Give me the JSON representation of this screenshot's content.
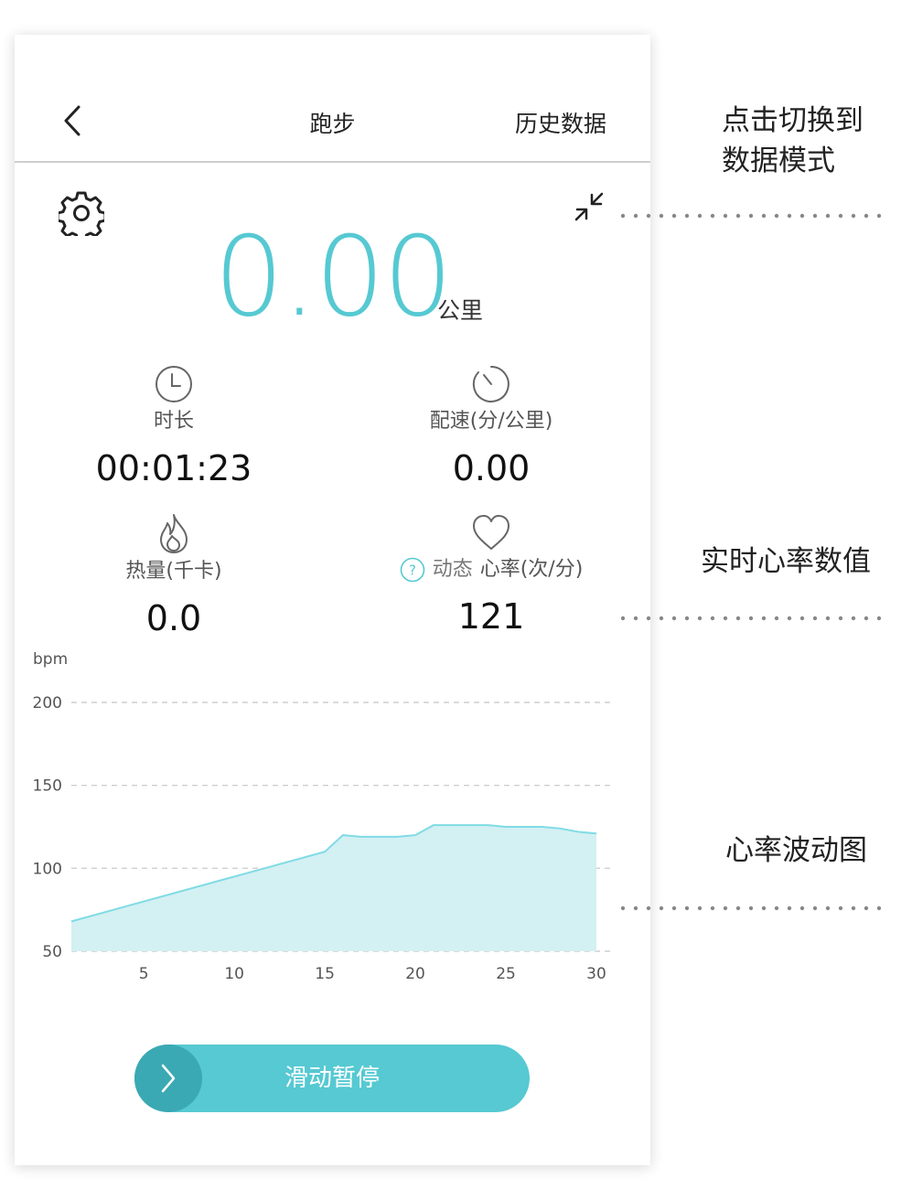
{
  "header": {
    "title": "跑步",
    "history_label": "历史数据"
  },
  "distance": {
    "value": "0.00",
    "unit": "公里"
  },
  "stats": {
    "duration": {
      "label": "时长",
      "value": "00:01:23"
    },
    "pace": {
      "label": "配速(分/公里)",
      "value": "0.00"
    },
    "calories": {
      "label": "热量(千卡)",
      "value": "0.0"
    },
    "heart_rate": {
      "prefix": "动态",
      "label": "心率(次/分)",
      "value": "121"
    }
  },
  "pause_slider": {
    "label": "滑动暂停"
  },
  "annotations": {
    "mode_switch": "点击切换到\n数据模式",
    "realtime_hr": "实时心率数值",
    "hr_chart": "心率波动图"
  },
  "colors": {
    "accent": "#56c9d2",
    "accent_dark": "#3aa9b3",
    "chart_fill": "#d3f0f3",
    "chart_line": "#7fdbe4"
  },
  "icons": {
    "back": "chevron-left-icon",
    "settings": "gear-icon",
    "collapse": "collapse-arrows-icon",
    "duration": "clock-icon",
    "pace": "stopwatch-icon",
    "calories": "flame-icon",
    "heart_rate": "heart-icon",
    "help": "question-circle-icon",
    "slider": "chevron-right-icon"
  },
  "chart_data": {
    "type": "area",
    "ylabel": "bpm",
    "xlabel": "",
    "ylim": [
      50,
      200
    ],
    "xlim": [
      1,
      30
    ],
    "yticks": [
      50,
      100,
      150,
      200
    ],
    "xticks": [
      5,
      10,
      15,
      20,
      25,
      30
    ],
    "grid": "dashed-horizontal",
    "series": [
      {
        "x": [
          1,
          15,
          16,
          17,
          18,
          19,
          20,
          21,
          22,
          23,
          24,
          25,
          26,
          27,
          28,
          29,
          30
        ],
        "values": [
          68,
          110,
          120,
          119,
          119,
          119,
          120,
          126,
          126,
          126,
          126,
          125,
          125,
          125,
          124,
          122,
          121
        ]
      }
    ]
  }
}
